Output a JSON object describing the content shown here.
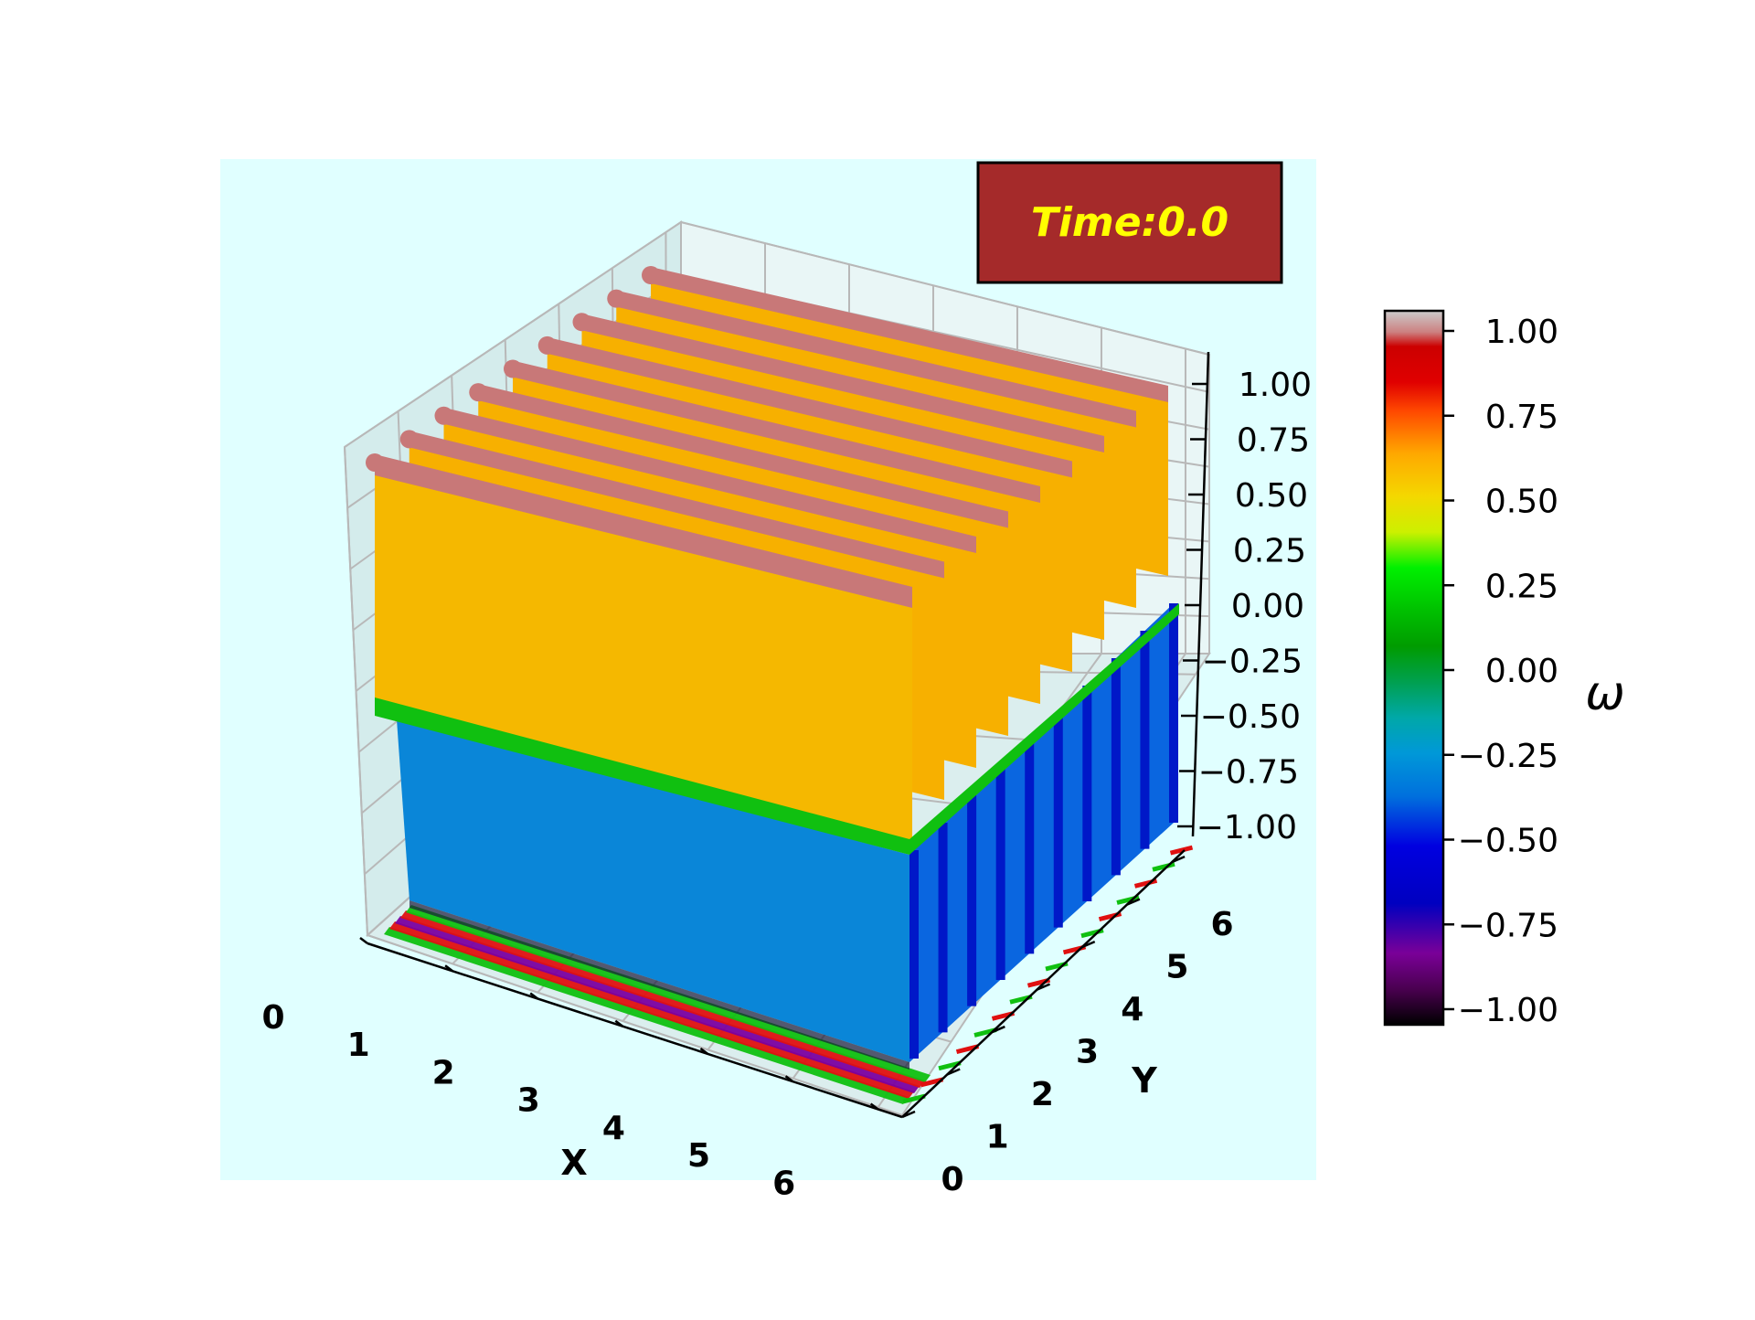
{
  "chart_data": {
    "type": "surface3d",
    "title": "Time:0.0",
    "xlabel": "X",
    "ylabel": "Y",
    "zlabel": "",
    "x_ticks": [
      "0",
      "1",
      "2",
      "3",
      "4",
      "5",
      "6"
    ],
    "y_ticks": [
      "0",
      "1",
      "2",
      "3",
      "4",
      "5",
      "6"
    ],
    "z_ticks": [
      "1.00",
      "0.75",
      "0.50",
      "0.25",
      "0.00",
      "−0.25",
      "−0.50",
      "−0.75",
      "−1.00"
    ],
    "xlim": [
      0,
      6.283
    ],
    "ylim": [
      0,
      6.283
    ],
    "zlim": [
      -1.0,
      1.0
    ],
    "field": "omega = sin(4 y) (square-wave-like bands along Y, uniform along X)",
    "ridge_count": 9,
    "ridge_value": 1.0,
    "plateau_value": 0.5,
    "lower_value": -0.5,
    "floor_value": -1.0,
    "grid": true,
    "colormap": "nipy_spectral",
    "colorbar": {
      "label": "ω",
      "ticks": [
        "1.00",
        "0.75",
        "0.50",
        "0.25",
        "0.00",
        "−0.25",
        "−0.50",
        "−0.75",
        "−1.00"
      ],
      "range": [
        -1.0,
        1.0
      ]
    },
    "annotation": {
      "text": "Time:0.0",
      "text_color": "#ffff00",
      "box_color": "#a52a2a"
    }
  },
  "colors": {
    "axes_background": "#e0ffff",
    "ridge": "#c87878",
    "plateau": "#f5b800",
    "lower": "#0a86d8",
    "band_green": "#10c010",
    "floor_red": "#e01010",
    "floor_purple": "#7a00a0"
  }
}
